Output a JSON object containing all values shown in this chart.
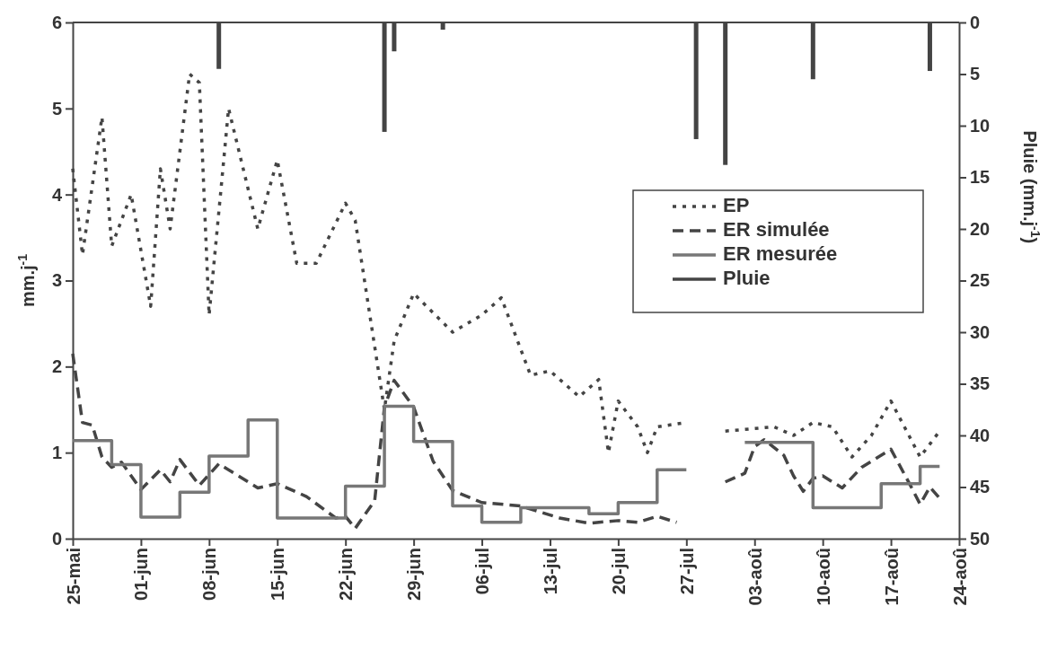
{
  "chart_data": {
    "type": "line",
    "ylabel": "mm.j$^{-1}$",
    "y2label": "Pluie (mm.j$^{-1}$)",
    "xlim": [
      "--05-25",
      "--08-24"
    ],
    "xticks": [
      {
        "value": "--05-25",
        "label": "25-mai"
      },
      {
        "value": "--06-01",
        "label": "01-jun"
      },
      {
        "value": "--06-08",
        "label": "08-jun"
      },
      {
        "value": "--06-15",
        "label": "15-jun"
      },
      {
        "value": "--06-22",
        "label": "22-jun"
      },
      {
        "value": "--06-29",
        "label": "29-jun"
      },
      {
        "value": "--07-06",
        "label": "06-jul"
      },
      {
        "value": "--07-13",
        "label": "13-jul"
      },
      {
        "value": "--07-20",
        "label": "20-jul"
      },
      {
        "value": "--07-27",
        "label": "27-jul"
      },
      {
        "value": "--08-03",
        "label": "03-aoû"
      },
      {
        "value": "--08-10",
        "label": "10-aoû"
      },
      {
        "value": "--08-17",
        "label": "17-aoû"
      },
      {
        "value": "--08-24",
        "label": "24-aoû"
      }
    ],
    "ylim": [
      0,
      6
    ],
    "yticks": [
      0,
      1,
      2,
      3,
      4,
      5,
      6
    ],
    "y2lim": [
      50,
      0
    ],
    "y2ticks": [
      0,
      5,
      10,
      15,
      20,
      25,
      30,
      35,
      40,
      45,
      50
    ],
    "legend": "right",
    "grid": false,
    "series": [
      {
        "name": "EP",
        "line_style": "dotted",
        "color": "#444444",
        "x": [
          "--05-25",
          "--05-26",
          "--05-28",
          "--05-29",
          "--05-31",
          "--06-02",
          "--06-03",
          "--06-04",
          "--06-06",
          "--06-07",
          "--06-08",
          "--06-10",
          "--06-13",
          "--06-15",
          "--06-17",
          "--06-19",
          "--06-22",
          "--06-23",
          "--06-26",
          "--06-27",
          "--06-29",
          "--07-03",
          "--07-06",
          "--07-08",
          "--07-11",
          "--07-13",
          "--07-16",
          "--07-18",
          "--07-19",
          "--07-20",
          "--07-22",
          "--07-23",
          "--07-24",
          "--07-27",
          "--07-28",
          "--07-31",
          "--08-05",
          "--08-07",
          "--08-09",
          "--08-11",
          "--08-13",
          "--08-15",
          "--08-17",
          "--08-20",
          "--08-22"
        ],
        "values": [
          4.3,
          3.3,
          4.9,
          3.4,
          4.0,
          2.7,
          4.3,
          3.6,
          5.4,
          5.3,
          2.6,
          5.0,
          3.6,
          4.4,
          3.2,
          3.2,
          3.9,
          3.7,
          1.5,
          2.3,
          2.85,
          2.4,
          2.6,
          2.8,
          1.9,
          1.95,
          1.65,
          1.85,
          1.0,
          1.6,
          1.3,
          1.0,
          1.3,
          1.35,
          null,
          1.25,
          1.3,
          1.2,
          1.35,
          1.3,
          0.95,
          1.2,
          1.6,
          0.95,
          1.25
        ]
      },
      {
        "name": "ER simulée",
        "line_style": "dashed",
        "color": "#444444",
        "x": [
          "--05-25",
          "--05-26",
          "--05-27",
          "--05-28",
          "--05-29",
          "--05-30",
          "--06-01",
          "--06-03",
          "--06-04",
          "--06-05",
          "--06-07",
          "--06-09",
          "--06-13",
          "--06-15",
          "--06-18",
          "--06-21",
          "--06-22",
          "--06-23",
          "--06-25",
          "--06-26",
          "--06-27",
          "--06-29",
          "--07-01",
          "--07-03",
          "--07-06",
          "--07-10",
          "--07-14",
          "--07-17",
          "--07-20",
          "--07-22",
          "--07-24",
          "--07-26",
          "--07-27",
          "--07-31",
          "--08-02",
          "--08-03",
          "--08-04",
          "--08-06",
          "--08-07",
          "--08-08",
          "--08-09",
          "--08-10",
          "--08-12",
          "--08-14",
          "--08-17",
          "--08-19",
          "--08-20",
          "--08-21",
          "--08-22"
        ],
        "values": [
          2.15,
          1.35,
          1.32,
          0.95,
          0.83,
          0.89,
          0.57,
          0.8,
          0.66,
          0.92,
          0.62,
          0.87,
          0.59,
          0.64,
          0.49,
          0.24,
          0.26,
          0.12,
          0.44,
          1.53,
          1.84,
          1.53,
          0.9,
          0.56,
          0.42,
          0.38,
          0.24,
          0.18,
          0.21,
          0.19,
          0.26,
          0.19,
          null,
          0.66,
          0.76,
          1.07,
          1.15,
          0.97,
          0.73,
          0.55,
          0.7,
          0.73,
          0.59,
          0.83,
          1.04,
          0.62,
          0.4,
          0.6,
          0.47
        ]
      },
      {
        "name": "ER mesurée",
        "type": "step",
        "color": "#777777",
        "x": [
          "--05-25",
          "--05-29",
          "--06-01",
          "--06-05",
          "--06-08",
          "--06-12",
          "--06-15",
          "--06-22",
          "--06-26",
          "--06-29",
          "--07-03",
          "--07-06",
          "--07-10",
          "--07-17",
          "--07-20",
          "--07-24",
          "--07-27",
          "--07-28",
          "--08-02",
          "--08-09",
          "--08-16",
          "--08-20",
          "--08-22"
        ],
        "values": [
          1.14,
          0.86,
          0.25,
          0.54,
          0.96,
          1.38,
          0.24,
          0.61,
          1.54,
          1.13,
          0.38,
          0.19,
          0.36,
          0.29,
          0.42,
          0.8,
          0.8,
          null,
          1.12,
          0.36,
          0.64,
          0.84,
          0.84
        ]
      },
      {
        "name": "Pluie",
        "type": "bar",
        "axis": "y2",
        "color": "#444444",
        "x": [
          "--06-09",
          "--06-26",
          "--06-27",
          "--07-02",
          "--07-28",
          "--07-31",
          "--08-09",
          "--08-21"
        ],
        "values": [
          4.5,
          10.6,
          2.8,
          0.7,
          11.3,
          13.8,
          5.5,
          4.7
        ]
      }
    ]
  }
}
